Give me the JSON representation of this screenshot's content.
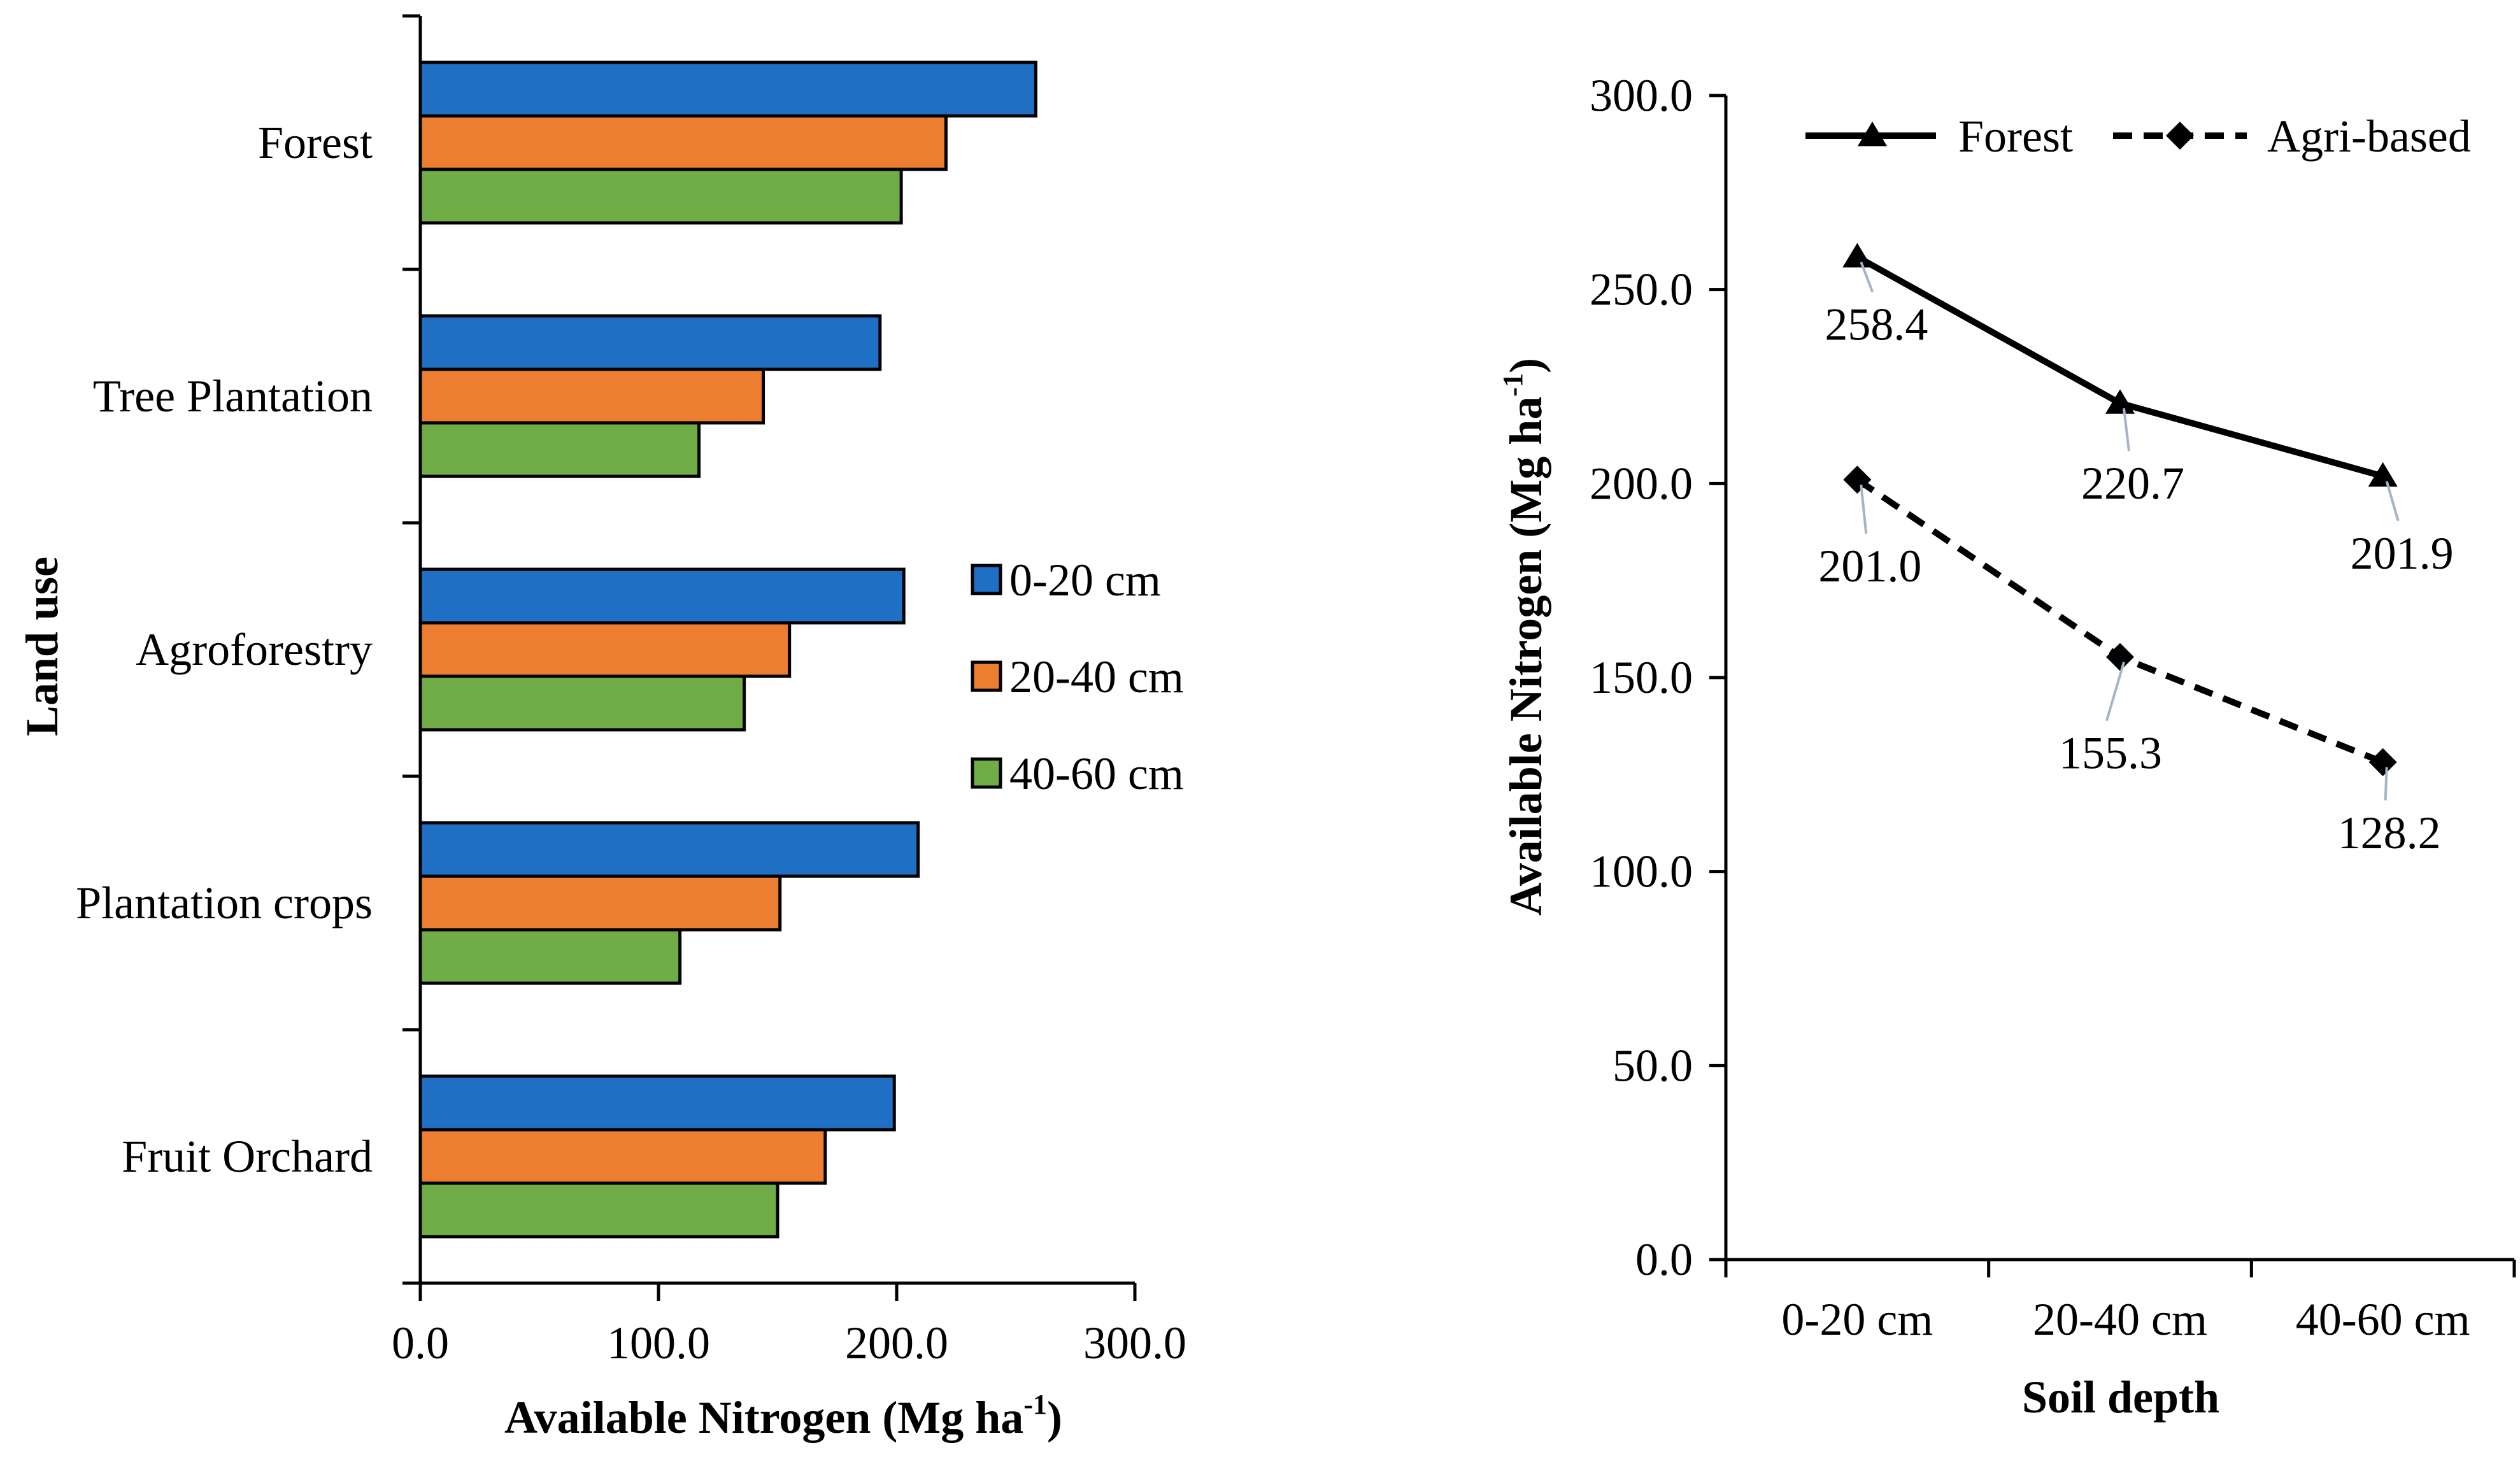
{
  "colors": {
    "depth_0_20": "#1F6FC5",
    "depth_20_40": "#ED7D31",
    "depth_40_60": "#70AD47",
    "forest_line": "#000000",
    "agri_line": "#000000",
    "label_leader": "#A6B4C8"
  },
  "chart_data": [
    {
      "type": "bar",
      "orientation": "horizontal",
      "categories": [
        "Forest",
        "Tree Plantation",
        "Agroforestry",
        "Plantation crops",
        "Fruit Orchard"
      ],
      "series": [
        {
          "name": "0-20 cm",
          "values": [
            258.4,
            193.0,
            203.0,
            209.0,
            199.0
          ]
        },
        {
          "name": "20-40 cm",
          "values": [
            220.7,
            144.0,
            155.0,
            151.0,
            170.0
          ]
        },
        {
          "name": "40-60 cm",
          "values": [
            201.9,
            117.0,
            136.0,
            109.0,
            150.0
          ]
        }
      ],
      "xlabel": "Available Nitrogen (Mg ha",
      "xlabel_sup": "-1",
      "xlabel_close": ")",
      "ylabel": "Land use",
      "xlim": [
        0,
        300
      ],
      "xticks": [
        "0.0",
        "100.0",
        "200.0",
        "300.0"
      ],
      "legend": "right",
      "grid": false
    },
    {
      "type": "line",
      "categories": [
        "0-20 cm",
        "20-40 cm",
        "40-60 cm"
      ],
      "series": [
        {
          "name": "Forest",
          "values": [
            258.4,
            220.7,
            201.9
          ],
          "labels": [
            "258.4",
            "220.7",
            "201.9"
          ],
          "marker": "triangle",
          "dash": "solid"
        },
        {
          "name": "Agri-based",
          "values": [
            201.0,
            155.3,
            128.2
          ],
          "labels": [
            "201.0",
            "155.3",
            "128.2"
          ],
          "marker": "diamond",
          "dash": "dashed"
        }
      ],
      "xlabel": "Soil depth",
      "ylabel": "Available Nitrogen (Mg ha",
      "ylabel_sup": "-1",
      "ylabel_close": ")",
      "ylim": [
        0,
        300
      ],
      "yticks": [
        "0.0",
        "50.0",
        "100.0",
        "150.0",
        "200.0",
        "250.0",
        "300.0"
      ],
      "legend": "top",
      "grid": false
    }
  ]
}
